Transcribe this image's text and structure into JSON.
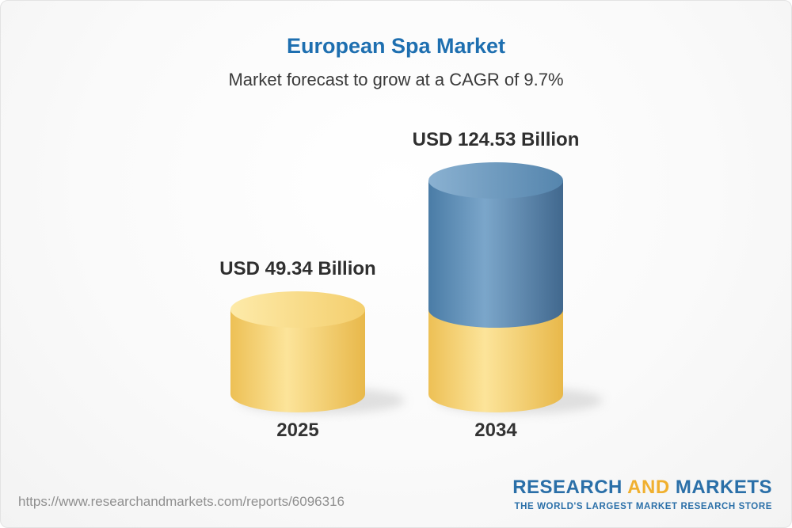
{
  "chart_data": {
    "type": "bar",
    "style": "3d-cylinder",
    "title": "European Spa Market",
    "subtitle": "Market forecast to grow at a CAGR of 9.7%",
    "categories": [
      "2025",
      "2034"
    ],
    "values": [
      49.34,
      124.53
    ],
    "value_labels": [
      "USD 49.34 Billion",
      "USD 124.53 Billion"
    ],
    "unit": "USD Billion",
    "cagr": "9.7%",
    "ylim": [
      0,
      130
    ],
    "legend": false,
    "grid": false,
    "colors": {
      "title_blue": "#1e6fb0",
      "label_text": "#2f2f2f",
      "yellow_body": [
        "#edc055",
        "#fce49a",
        "#e8b84a"
      ],
      "yellow_top": [
        "#fdeaa9",
        "#f4cf6e"
      ],
      "blue_body": [
        "#4a7ca6",
        "#7ba6ca",
        "#41688e"
      ],
      "blue_top": [
        "#8ab1d1",
        "#5585ad"
      ],
      "shadow": "#c4c4c4"
    }
  },
  "footer": {
    "url": "https://www.researchandmarkets.com/reports/6096316",
    "logo": {
      "research": "RESEARCH",
      "and": "AND",
      "markets": "MARKETS",
      "tagline": "THE WORLD'S LARGEST MARKET RESEARCH STORE"
    }
  }
}
